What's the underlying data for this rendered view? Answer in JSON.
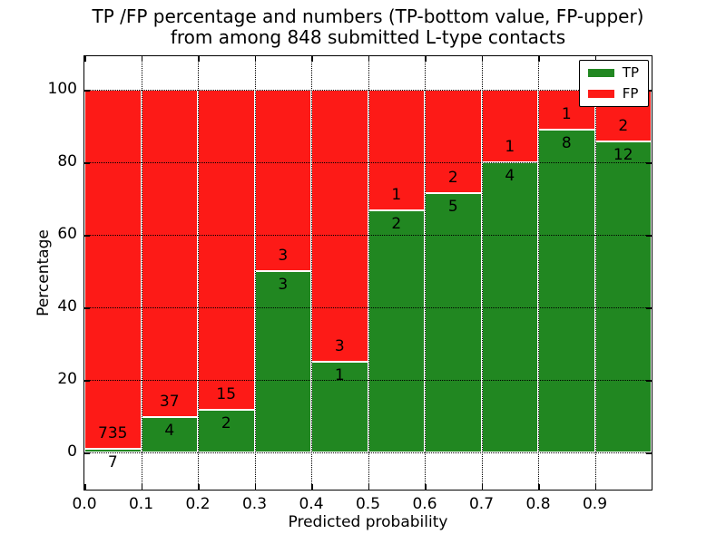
{
  "title": {
    "line1": "TP /FP percentage and numbers (TP-bottom value, FP-upper)",
    "line2": "from among 848 submitted L-type contacts"
  },
  "chart_data": {
    "type": "bar",
    "stacked": true,
    "total_submitted": 848,
    "bin_width": 0.1,
    "bin_starts": [
      0.0,
      0.1,
      0.2,
      0.3,
      0.4,
      0.5,
      0.6,
      0.7,
      0.8,
      0.9
    ],
    "series": [
      {
        "name": "TP",
        "color": "#218721",
        "counts": [
          7,
          4,
          2,
          3,
          1,
          2,
          5,
          4,
          8,
          12
        ]
      },
      {
        "name": "FP",
        "color": "#fd1a17",
        "counts": [
          735,
          37,
          15,
          3,
          3,
          1,
          2,
          1,
          1,
          2
        ]
      }
    ],
    "tp_percentages": [
      0.94,
      9.76,
      11.76,
      50.0,
      25.0,
      66.67,
      71.43,
      80.0,
      88.89,
      85.71
    ],
    "bar_edge_color": "#ffffff",
    "xlabel": "Predicted probability",
    "ylabel": "Percentage",
    "xlim": [
      0.0,
      1.0
    ],
    "ylim": [
      -10.25,
      109.25
    ],
    "xtick_values": [
      0.0,
      0.1,
      0.2,
      0.3,
      0.4,
      0.5,
      0.6,
      0.7,
      0.8,
      0.9
    ],
    "xtick_labels": [
      "0.0",
      "0.1",
      "0.2",
      "0.3",
      "0.4",
      "0.5",
      "0.6",
      "0.7",
      "0.8",
      "0.9"
    ],
    "ytick_values": [
      0,
      20,
      40,
      60,
      80,
      100
    ],
    "ytick_labels": [
      "0",
      "20",
      "40",
      "60",
      "80",
      "100"
    ],
    "grid": "dotted",
    "legend": {
      "position": "upper right",
      "entries": [
        {
          "label": "TP",
          "color": "#218721"
        },
        {
          "label": "FP",
          "color": "#fd1a17"
        }
      ]
    }
  }
}
